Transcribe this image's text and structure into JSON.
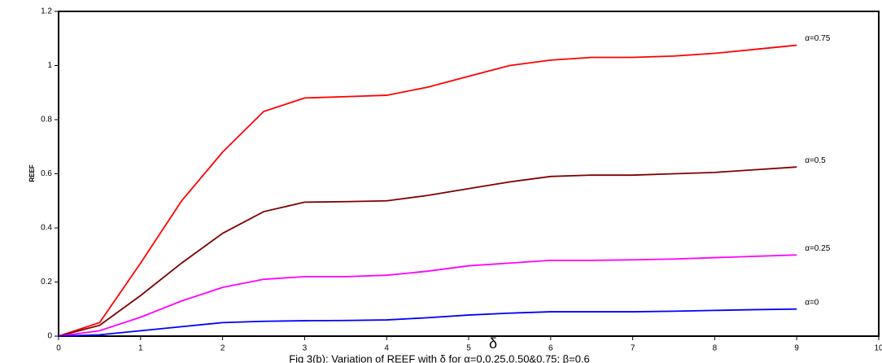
{
  "chart_data": {
    "type": "line",
    "title": "Fig 3(b): Variation of REEF with δ for α=0,0.25,0.50&0.75; β=0.6",
    "x_label": "δ",
    "y_label": "REEF",
    "x": [
      0,
      0.5,
      1,
      1.5,
      2,
      2.5,
      3,
      3.5,
      4,
      4.5,
      5,
      5.5,
      6,
      6.5,
      7,
      7.5,
      8,
      8.5,
      9
    ],
    "series": [
      {
        "name": "α=0.75",
        "color": "#ff0000",
        "values": [
          0,
          0.05,
          0.27,
          0.5,
          0.68,
          0.83,
          0.88,
          0.885,
          0.89,
          0.92,
          0.96,
          1.0,
          1.02,
          1.03,
          1.03,
          1.035,
          1.045,
          1.06,
          1.075
        ]
      },
      {
        "name": "α=0.5",
        "color": "#800000",
        "values": [
          0,
          0.04,
          0.15,
          0.27,
          0.38,
          0.46,
          0.495,
          0.497,
          0.5,
          0.52,
          0.545,
          0.57,
          0.59,
          0.595,
          0.595,
          0.6,
          0.605,
          0.615,
          0.625
        ]
      },
      {
        "name": "α=0.25",
        "color": "#ff00ff",
        "values": [
          0,
          0.02,
          0.07,
          0.13,
          0.18,
          0.21,
          0.22,
          0.22,
          0.225,
          0.24,
          0.26,
          0.27,
          0.28,
          0.28,
          0.282,
          0.285,
          0.29,
          0.295,
          0.3
        ]
      },
      {
        "name": "α=0",
        "color": "#0000ff",
        "values": [
          0,
          0.005,
          0.02,
          0.035,
          0.05,
          0.055,
          0.057,
          0.058,
          0.06,
          0.068,
          0.078,
          0.085,
          0.09,
          0.09,
          0.09,
          0.092,
          0.095,
          0.098,
          0.1
        ]
      }
    ],
    "xlim": [
      0,
      10
    ],
    "xticks": [
      0,
      1,
      2,
      3,
      4,
      5,
      6,
      7,
      8,
      9,
      10
    ],
    "ylim": [
      0,
      1.2
    ],
    "yticks": [
      0,
      0.2,
      0.4,
      0.6,
      0.8,
      1,
      1.2
    ],
    "grid": false
  }
}
